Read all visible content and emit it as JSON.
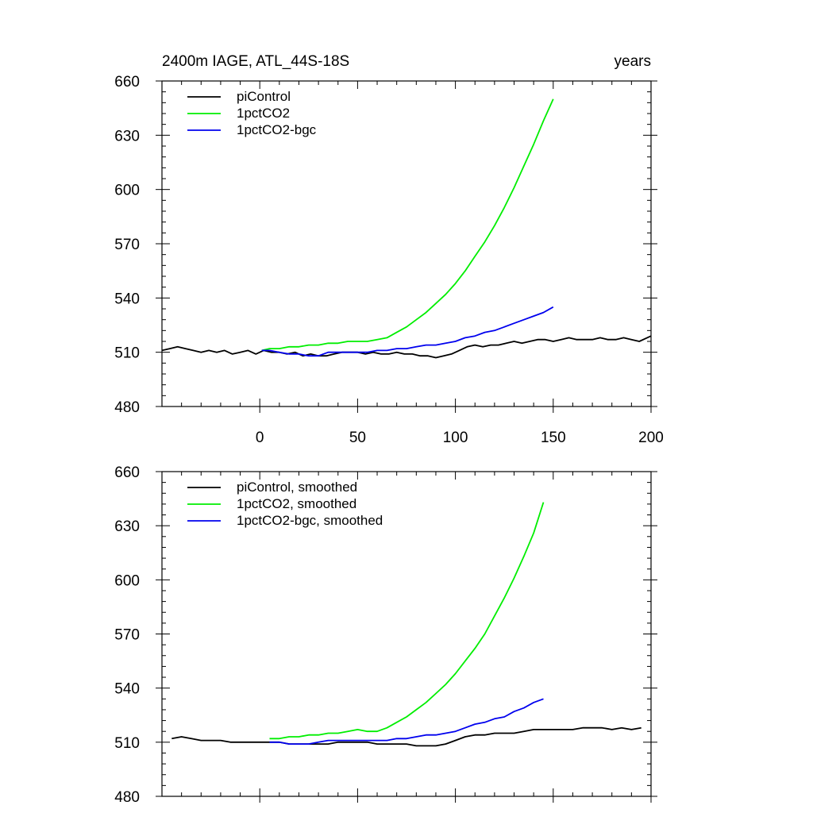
{
  "figure": {
    "title_left": "2400m IAGE, ATL_44S-18S",
    "title_right": "years"
  },
  "chart_data": [
    {
      "type": "line",
      "panel": "top",
      "xlim": [
        -50,
        200
      ],
      "ylim": [
        480,
        660
      ],
      "x_ticks": [
        0,
        50,
        100,
        150,
        200
      ],
      "y_ticks": [
        480,
        510,
        540,
        570,
        600,
        630,
        660
      ],
      "x_tick_labels": [
        "0",
        "50",
        "100",
        "150",
        "200"
      ],
      "y_tick_labels": [
        "480",
        "510",
        "540",
        "570",
        "600",
        "630",
        "660"
      ],
      "grid": false,
      "legend_position": "top-left",
      "series": [
        {
          "name": "piControl",
          "color": "#000000",
          "x": [
            -50,
            -46,
            -42,
            -38,
            -34,
            -30,
            -26,
            -22,
            -18,
            -14,
            -10,
            -6,
            -2,
            2,
            6,
            10,
            14,
            18,
            22,
            26,
            30,
            34,
            38,
            42,
            46,
            50,
            54,
            58,
            62,
            66,
            70,
            74,
            78,
            82,
            86,
            90,
            94,
            98,
            102,
            106,
            110,
            114,
            118,
            122,
            126,
            130,
            134,
            138,
            142,
            146,
            150,
            154,
            158,
            162,
            166,
            170,
            174,
            178,
            182,
            186,
            190,
            194,
            198,
            200
          ],
          "values": [
            511,
            512,
            513,
            512,
            511,
            510,
            511,
            510,
            511,
            509,
            510,
            511,
            509,
            511,
            510,
            510,
            509,
            510,
            508,
            509,
            508,
            508,
            509,
            510,
            510,
            510,
            509,
            510,
            509,
            509,
            510,
            509,
            509,
            508,
            508,
            507,
            508,
            509,
            511,
            513,
            514,
            513,
            514,
            514,
            515,
            516,
            515,
            516,
            517,
            517,
            516,
            517,
            518,
            517,
            517,
            517,
            518,
            517,
            517,
            518,
            517,
            516,
            518,
            519
          ]
        },
        {
          "name": "1pctCO2",
          "color": "#00ee00",
          "x": [
            1,
            5,
            10,
            15,
            20,
            25,
            30,
            35,
            40,
            45,
            50,
            55,
            60,
            65,
            70,
            75,
            80,
            85,
            90,
            95,
            100,
            105,
            110,
            115,
            120,
            125,
            130,
            135,
            140,
            145,
            150
          ],
          "values": [
            511,
            512,
            512,
            513,
            513,
            514,
            514,
            515,
            515,
            516,
            516,
            516,
            517,
            518,
            521,
            524,
            528,
            532,
            537,
            542,
            548,
            555,
            563,
            571,
            580,
            590,
            601,
            613,
            625,
            638,
            650
          ]
        },
        {
          "name": "1pctCO2-bgc",
          "color": "#0000ee",
          "x": [
            1,
            5,
            10,
            15,
            20,
            25,
            30,
            35,
            40,
            45,
            50,
            55,
            60,
            65,
            70,
            75,
            80,
            85,
            90,
            95,
            100,
            105,
            110,
            115,
            120,
            125,
            130,
            135,
            140,
            145,
            150
          ],
          "values": [
            511,
            511,
            510,
            509,
            509,
            508,
            508,
            510,
            510,
            510,
            510,
            510,
            511,
            511,
            512,
            512,
            513,
            514,
            514,
            515,
            516,
            518,
            519,
            521,
            522,
            524,
            526,
            528,
            530,
            532,
            535
          ]
        }
      ]
    },
    {
      "type": "line",
      "panel": "bottom",
      "xlim": [
        -50,
        200
      ],
      "ylim": [
        480,
        660
      ],
      "x_ticks": [
        0,
        50,
        100,
        150,
        200
      ],
      "y_ticks": [
        480,
        510,
        540,
        570,
        600,
        630,
        660
      ],
      "y_tick_labels": [
        "480",
        "510",
        "540",
        "570",
        "600",
        "630",
        "660"
      ],
      "grid": false,
      "legend_position": "top-left",
      "series": [
        {
          "name": "piControl, smoothed",
          "color": "#000000",
          "x": [
            -45,
            -40,
            -35,
            -30,
            -25,
            -20,
            -15,
            -10,
            -5,
            0,
            5,
            10,
            15,
            20,
            25,
            30,
            35,
            40,
            45,
            50,
            55,
            60,
            65,
            70,
            75,
            80,
            85,
            90,
            95,
            100,
            105,
            110,
            115,
            120,
            125,
            130,
            135,
            140,
            145,
            150,
            155,
            160,
            165,
            170,
            175,
            180,
            185,
            190,
            195
          ],
          "values": [
            512,
            513,
            512,
            511,
            511,
            511,
            510,
            510,
            510,
            510,
            510,
            510,
            509,
            509,
            509,
            509,
            509,
            510,
            510,
            510,
            510,
            509,
            509,
            509,
            509,
            508,
            508,
            508,
            509,
            511,
            513,
            514,
            514,
            515,
            515,
            515,
            516,
            517,
            517,
            517,
            517,
            517,
            518,
            518,
            518,
            517,
            518,
            517,
            518
          ]
        },
        {
          "name": "1pctCO2, smoothed",
          "color": "#00ee00",
          "x": [
            5,
            10,
            15,
            20,
            25,
            30,
            35,
            40,
            45,
            50,
            55,
            60,
            65,
            70,
            75,
            80,
            85,
            90,
            95,
            100,
            105,
            110,
            115,
            120,
            125,
            130,
            135,
            140,
            145
          ],
          "values": [
            512,
            512,
            513,
            513,
            514,
            514,
            515,
            515,
            516,
            517,
            516,
            516,
            518,
            521,
            524,
            528,
            532,
            537,
            542,
            548,
            555,
            562,
            570,
            580,
            590,
            601,
            613,
            626,
            643
          ]
        },
        {
          "name": "1pctCO2-bgc, smoothed",
          "color": "#0000ee",
          "x": [
            5,
            10,
            15,
            20,
            25,
            30,
            35,
            40,
            45,
            50,
            55,
            60,
            65,
            70,
            75,
            80,
            85,
            90,
            95,
            100,
            105,
            110,
            115,
            120,
            125,
            130,
            135,
            140,
            145
          ],
          "values": [
            510,
            510,
            509,
            509,
            509,
            510,
            511,
            511,
            511,
            511,
            511,
            511,
            511,
            512,
            512,
            513,
            514,
            514,
            515,
            516,
            518,
            520,
            521,
            523,
            524,
            527,
            529,
            532,
            534
          ]
        }
      ]
    }
  ]
}
